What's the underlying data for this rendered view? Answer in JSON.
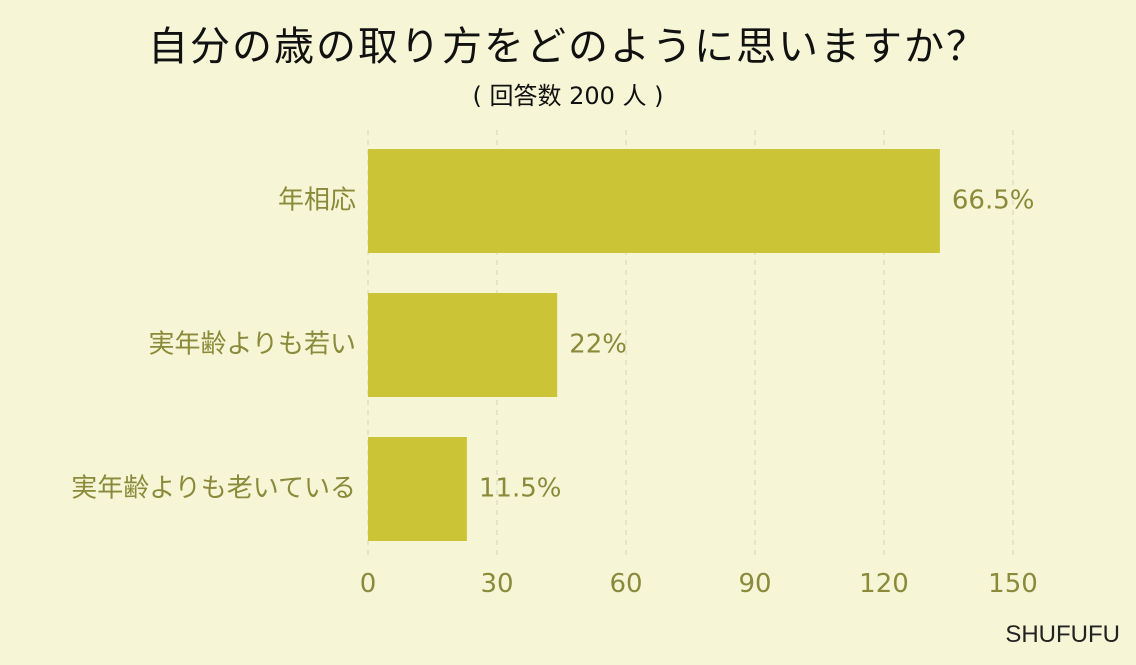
{
  "chart_data": {
    "type": "bar",
    "orientation": "horizontal",
    "title": "自分の歳の取り方をどのように思いますか？",
    "subtitle": "( 回答数 200 人 )",
    "categories": [
      "年相応",
      "実年齢よりも若い",
      "実年齢よりも老いている"
    ],
    "values": [
      133,
      44,
      23
    ],
    "data_labels": [
      "66.5%",
      "22%",
      "11.5%"
    ],
    "xlim": [
      0,
      150
    ],
    "x_ticks": [
      0,
      30,
      60,
      90,
      120,
      150
    ],
    "x_tick_labels": [
      "0",
      "30",
      "60",
      "90",
      "120",
      "150"
    ],
    "grid": "vertical dashed",
    "legend": "none"
  },
  "credit": "SHUFUFU",
  "colors": {
    "background": "#f6f6d6",
    "bar": "#cbc437",
    "label_text": "#8a8a3a",
    "title_text": "#111111",
    "grid": "#d8d8c4"
  }
}
